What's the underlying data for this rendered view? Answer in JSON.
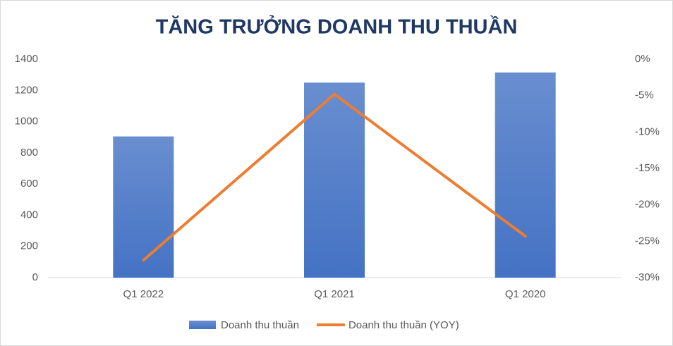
{
  "chart_data": {
    "type": "bar",
    "title": "TĂNG TRƯỞNG DOANH THU THUẦN",
    "categories": [
      "Q1 2022",
      "Q1 2021",
      "Q1 2020"
    ],
    "series": [
      {
        "name": "Doanh thu thuần",
        "type": "bar",
        "color": "#4472c4",
        "values": [
          905,
          1250,
          1315
        ]
      },
      {
        "name": "Doanh thu thuần (YOY)",
        "type": "line",
        "axis": "y2",
        "color": "#ed7d31",
        "values": [
          -27.6,
          -4.8,
          -24.3
        ]
      }
    ],
    "ylim": [
      0,
      1400
    ],
    "yticks": [
      0,
      200,
      400,
      600,
      800,
      1000,
      1200,
      1400
    ],
    "y2lim": [
      -30,
      0
    ],
    "y2ticks": [
      {
        "value": 0,
        "label": "0%"
      },
      {
        "value": -5,
        "label": "-5%"
      },
      {
        "value": -10,
        "label": "-10%"
      },
      {
        "value": -15,
        "label": "-15%"
      },
      {
        "value": -20,
        "label": "-20%"
      },
      {
        "value": -25,
        "label": "-25%"
      },
      {
        "value": -30,
        "label": "-30%"
      }
    ],
    "grid": false,
    "legend": "bottom"
  }
}
